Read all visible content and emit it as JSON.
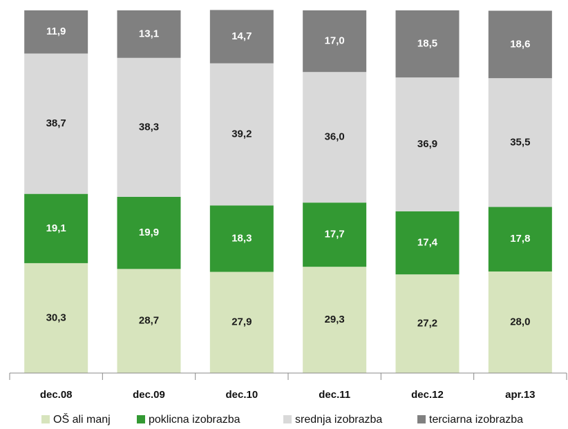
{
  "chart_data": {
    "type": "stacked_bar",
    "categories": [
      "dec.08",
      "dec.09",
      "dec.10",
      "dec.11",
      "dec.12",
      "apr.13"
    ],
    "series": [
      {
        "name": "OŠ ali manj",
        "color": "#d7e4bd",
        "label_color": "#1a1a1a",
        "values": [
          30.3,
          28.7,
          27.9,
          29.3,
          27.2,
          28.0
        ],
        "value_labels": [
          "30,3",
          "28,7",
          "27,9",
          "29,3",
          "27,2",
          "28,0"
        ]
      },
      {
        "name": "poklicna izobrazba",
        "color": "#339933",
        "label_color": "#ffffff",
        "values": [
          19.1,
          19.9,
          18.3,
          17.7,
          17.4,
          17.8
        ],
        "value_labels": [
          "19,1",
          "19,9",
          "18,3",
          "17,7",
          "17,4",
          "17,8"
        ]
      },
      {
        "name": "srednja izobrazba",
        "color": "#d9d9d9",
        "label_color": "#1a1a1a",
        "values": [
          38.7,
          38.3,
          39.2,
          36.0,
          36.9,
          35.5
        ],
        "value_labels": [
          "38,7",
          "38,3",
          "39,2",
          "36,0",
          "36,9",
          "35,5"
        ]
      },
      {
        "name": "terciarna izobrazba",
        "color": "#808080",
        "label_color": "#ffffff",
        "values": [
          11.9,
          13.1,
          14.7,
          17.0,
          18.5,
          18.6
        ],
        "value_labels": [
          "11,9",
          "13,1",
          "14,7",
          "17,0",
          "18,5",
          "18,6"
        ]
      }
    ],
    "ylim": [
      0,
      100
    ],
    "legend": "bottom"
  }
}
